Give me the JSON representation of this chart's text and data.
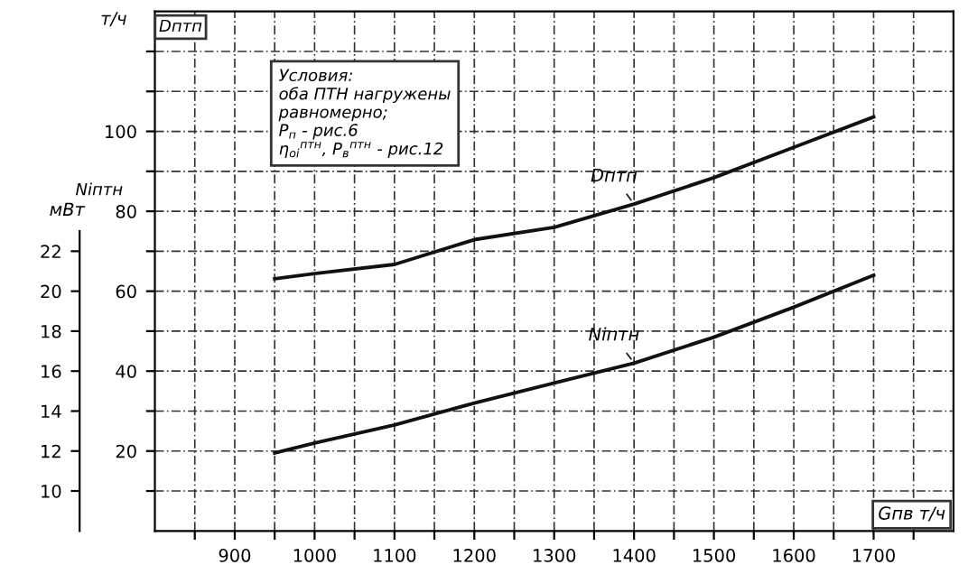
{
  "chart_data": {
    "type": "line",
    "xlabel": "Gпв т/ч",
    "ylabel": "т/ч",
    "y2label": "мВт",
    "annotations": [
      "Dптп",
      "Niптн",
      "Условия:\nоба ПТН нагружены\nравномерно;\nP$_{п}$ - рис.6\nη$_{oi}$$^{птн}$, P$_{в}$$^{птн}$ - рис.12"
    ],
    "x": [
      950,
      1000,
      1100,
      1200,
      1300,
      1400,
      1500,
      1600,
      1700
    ],
    "series": [
      {
        "name": "Dптп",
        "color": "#111111",
        "values": [
          63.1,
          64.4,
          66.7,
          72.9,
          76,
          81.8,
          88.4,
          96,
          103.6
        ]
      },
      {
        "name": "Niптн",
        "color": "#111111",
        "axis": "y2",
        "values": [
          11.9,
          12.4,
          13.3,
          14.4,
          15.4,
          16.4,
          17.7,
          19.2,
          20.8
        ]
      }
    ],
    "xlim": [
      800,
      1800
    ],
    "xticks": [
      {
        "value": 850,
        "label": null
      },
      900,
      {
        "value": 950,
        "label": null
      },
      1000,
      {
        "value": 1050,
        "label": null
      },
      1100,
      {
        "value": 1150,
        "label": null
      },
      1200,
      {
        "value": 1250,
        "label": null
      },
      1300,
      {
        "value": 1350,
        "label": null
      },
      1400,
      {
        "value": 1450,
        "label": null
      },
      1500,
      {
        "value": 1550,
        "label": null
      },
      1600,
      {
        "value": 1650,
        "label": null
      },
      1700,
      {
        "value": 1750,
        "label": null
      }
    ],
    "ylim": [
      0,
      130
    ],
    "yticks": [
      {
        "value": 10,
        "label": null
      },
      20,
      {
        "value": 30,
        "label": null
      },
      40,
      {
        "value": 50,
        "label": null
      },
      60,
      {
        "value": 70,
        "label": null
      },
      80,
      {
        "value": 90,
        "label": null
      },
      100,
      {
        "value": 110,
        "label": null
      },
      {
        "value": 120,
        "label": null
      }
    ],
    "y2lim": [
      8,
      34
    ],
    "y2ticks": [
      10,
      12,
      14,
      16,
      18,
      20,
      22
    ],
    "grid": true,
    "line_style": "solid",
    "marker": "none",
    "legend": false
  }
}
